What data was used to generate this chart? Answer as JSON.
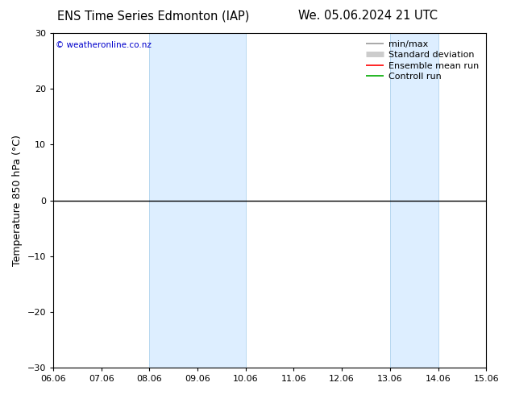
{
  "title_left": "ENS Time Series Edmonton (IAP)",
  "title_right": "We. 05.06.2024 21 UTC",
  "ylabel": "Temperature 850 hPa (°C)",
  "ylim": [
    -30,
    30
  ],
  "yticks": [
    -30,
    -20,
    -10,
    0,
    10,
    20,
    30
  ],
  "xlim": [
    0,
    9
  ],
  "xtick_labels": [
    "06.06",
    "07.06",
    "08.06",
    "09.06",
    "10.06",
    "11.06",
    "12.06",
    "13.06",
    "14.06",
    "15.06"
  ],
  "xtick_positions": [
    0,
    1,
    2,
    3,
    4,
    5,
    6,
    7,
    8,
    9
  ],
  "watermark": "© weatheronline.co.nz",
  "watermark_color": "#0000cc",
  "bg_color": "#ffffff",
  "plot_bg_color": "#ffffff",
  "zero_line_color": "#000000",
  "shaded_bands": [
    {
      "x_start": 2,
      "x_end": 4,
      "color": "#ddeeff"
    },
    {
      "x_start": 7,
      "x_end": 8,
      "color": "#ddeeff"
    }
  ],
  "shaded_band_edge_color": "#b8d8f0",
  "legend_items": [
    {
      "label": "min/max",
      "color": "#999999",
      "lw": 1.2
    },
    {
      "label": "Standard deviation",
      "color": "#cccccc",
      "lw": 5
    },
    {
      "label": "Ensemble mean run",
      "color": "#ff0000",
      "lw": 1.2
    },
    {
      "label": "Controll run",
      "color": "#00aa00",
      "lw": 1.2
    }
  ],
  "title_fontsize": 10.5,
  "tick_fontsize": 8,
  "ylabel_fontsize": 9,
  "legend_fontsize": 8
}
